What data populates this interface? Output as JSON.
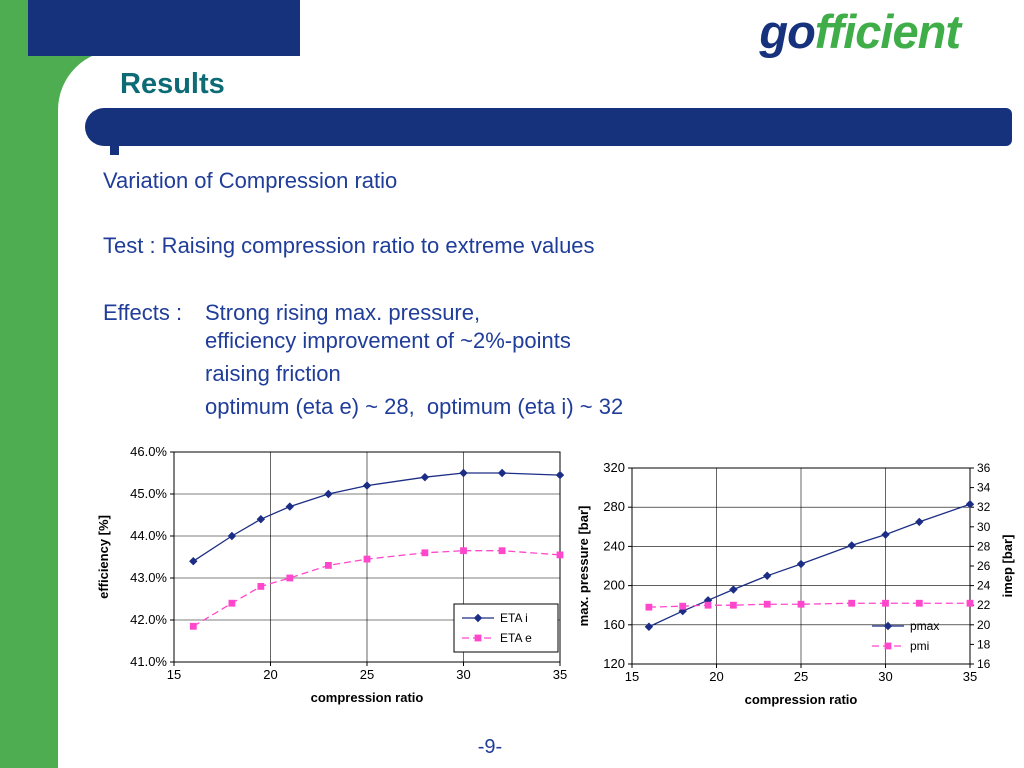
{
  "logo": {
    "go": "go",
    "fficient": "fficient"
  },
  "slide": {
    "title": "Results",
    "page_number": "-9-",
    "body": {
      "line1": "Variation of Compression ratio",
      "line2": "Test : Raising compression ratio to extreme values",
      "effects_label": "Effects :",
      "effect1": "Strong rising max. pressure,",
      "effect2": "efficiency improvement of ~2%-points",
      "effect3": "raising friction",
      "effect4": "optimum (eta e) ~ 28,  optimum (eta i) ~ 32"
    }
  },
  "colors": {
    "band_green": "#4fad51",
    "logo_green": "#3fae49",
    "navy": "#16327c",
    "body_text": "#1f3d99",
    "title_teal": "#0d6b75",
    "series_navy": "#1c2d85",
    "series_magenta": "#ff47cc"
  },
  "chart_data": [
    {
      "type": "line",
      "title": "",
      "xlabel": "compression ratio",
      "ylabel": "efficiency [%]",
      "x": [
        16,
        18,
        19.5,
        21,
        23,
        25,
        28,
        30,
        32,
        35
      ],
      "xlim": [
        15,
        35
      ],
      "xticks": [
        15,
        20,
        25,
        30,
        35
      ],
      "ylim": [
        41,
        46
      ],
      "yticks": [
        41,
        42,
        43,
        44,
        45,
        46
      ],
      "ytick_labels": [
        "41.0%",
        "42.0%",
        "43.0%",
        "44.0%",
        "45.0%",
        "46.0%"
      ],
      "grid": true,
      "series": [
        {
          "name": "ETA i",
          "axis": "y",
          "color": "#1c2d85",
          "marker": "diamond",
          "dashed": false,
          "values": [
            43.4,
            44.0,
            44.4,
            44.7,
            45.0,
            45.2,
            45.4,
            45.5,
            45.5,
            45.45
          ]
        },
        {
          "name": "ETA e",
          "axis": "y",
          "color": "#ff47cc",
          "marker": "square",
          "dashed": true,
          "values": [
            41.85,
            42.4,
            42.8,
            43.0,
            43.3,
            43.45,
            43.6,
            43.65,
            43.65,
            43.55
          ]
        }
      ],
      "legend": {
        "position": "inside-bottom-right",
        "box": true
      }
    },
    {
      "type": "line",
      "title": "",
      "xlabel": "compression ratio",
      "ylabel": "max. pressure [bar]",
      "y2label": "imep [bar]",
      "x": [
        16,
        18,
        19.5,
        21,
        23,
        25,
        28,
        30,
        32,
        35
      ],
      "xlim": [
        15,
        35
      ],
      "xticks": [
        15,
        20,
        25,
        30,
        35
      ],
      "ylim": [
        120,
        320
      ],
      "yticks": [
        120,
        160,
        200,
        240,
        280,
        320
      ],
      "ytick_labels": [
        "120",
        "160",
        "200",
        "240",
        "280",
        "320"
      ],
      "y2lim": [
        16,
        36
      ],
      "y2ticks": [
        16,
        18,
        20,
        22,
        24,
        26,
        28,
        30,
        32,
        34,
        36
      ],
      "y2tick_labels": [
        "16",
        "18",
        "20",
        "22",
        "24",
        "26",
        "28",
        "30",
        "32",
        "34",
        "36"
      ],
      "grid": true,
      "series": [
        {
          "name": "pmax",
          "axis": "y",
          "color": "#1c2d85",
          "marker": "diamond",
          "dashed": false,
          "values": [
            158,
            174,
            185,
            196,
            210,
            222,
            241,
            252,
            265,
            283
          ]
        },
        {
          "name": "pmi",
          "axis": "y2",
          "color": "#ff47cc",
          "marker": "square",
          "dashed": true,
          "values": [
            21.8,
            21.9,
            22.0,
            22.0,
            22.1,
            22.1,
            22.2,
            22.2,
            22.2,
            22.2
          ]
        }
      ],
      "legend": {
        "position": "inside-bottom-right",
        "box": false
      }
    }
  ]
}
